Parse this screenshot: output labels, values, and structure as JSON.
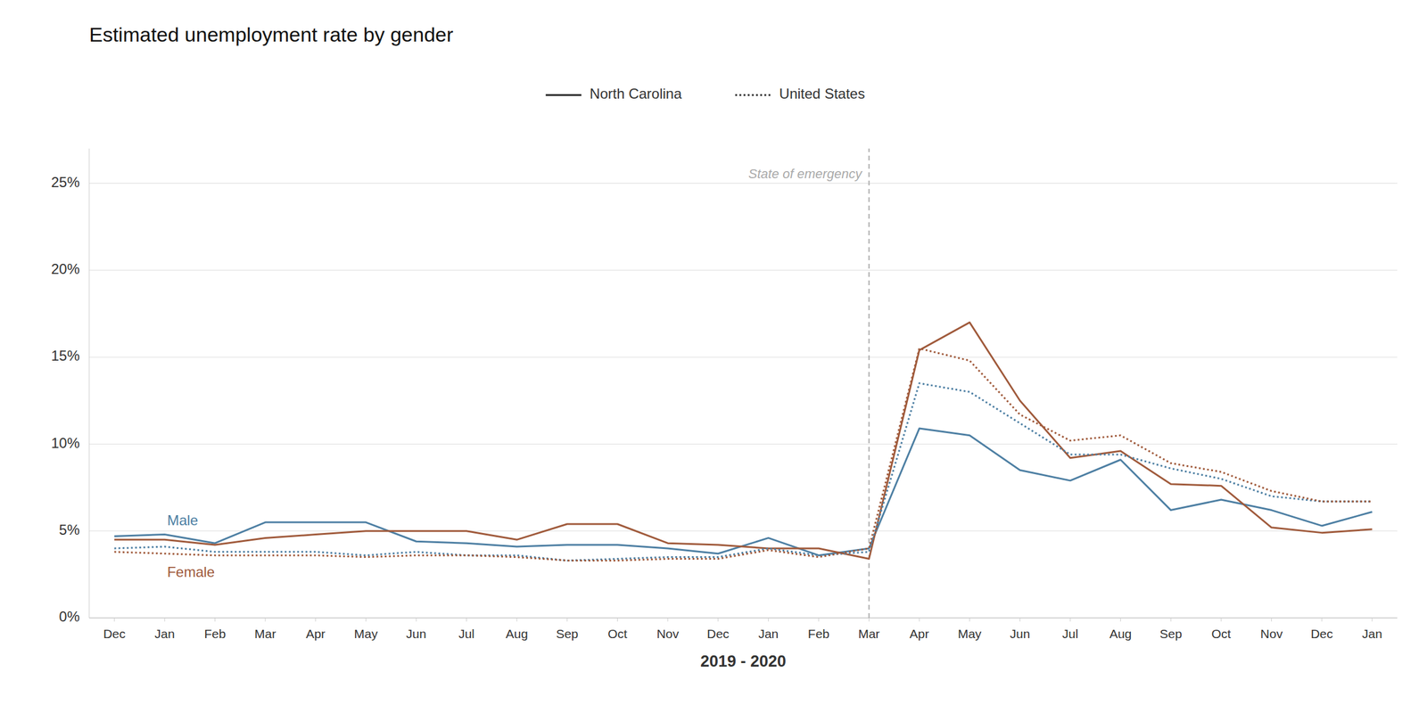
{
  "chart_data": {
    "type": "line",
    "title": "Estimated unemployment rate by gender",
    "x_label": "2019 - 2020",
    "categories": [
      "Dec",
      "Jan",
      "Feb",
      "Mar",
      "Apr",
      "May",
      "Jun",
      "Jul",
      "Aug",
      "Sep",
      "Oct",
      "Nov",
      "Dec",
      "Jan",
      "Feb",
      "Mar",
      "Apr",
      "May",
      "Jun",
      "Jul",
      "Aug",
      "Sep",
      "Oct",
      "Nov",
      "Dec",
      "Jan"
    ],
    "series": [
      {
        "name": "North Carolina",
        "color": "#4d7fa3",
        "line_style": "solid",
        "values": [
          4.7,
          4.8,
          4.3,
          5.5,
          5.5,
          5.5,
          4.4,
          4.3,
          4.1,
          4.2,
          4.2,
          4.0,
          3.7,
          4.6,
          3.6,
          4.0,
          10.9,
          10.5,
          8.5,
          7.9,
          9.1,
          6.2,
          6.8,
          6.2,
          5.3,
          6.1
        ]
      },
      {
        "name": "North Carolina",
        "color": "#a05a3b",
        "line_style": "solid",
        "values": [
          4.5,
          4.5,
          4.2,
          4.6,
          4.8,
          5.0,
          5.0,
          5.0,
          4.5,
          5.4,
          5.4,
          4.3,
          4.2,
          4.0,
          4.0,
          3.4,
          15.4,
          17.0,
          12.5,
          9.2,
          9.6,
          7.7,
          7.6,
          5.2,
          4.9,
          5.1
        ]
      },
      {
        "name": "United States",
        "color": "#4d7fa3",
        "line_style": "dotted",
        "values": [
          4.0,
          4.1,
          3.8,
          3.8,
          3.8,
          3.6,
          3.8,
          3.6,
          3.6,
          3.3,
          3.4,
          3.5,
          3.5,
          4.0,
          3.6,
          3.8,
          13.5,
          13.0,
          11.2,
          9.4,
          9.4,
          8.6,
          8.0,
          7.0,
          6.7,
          6.7
        ]
      },
      {
        "name": "United States",
        "color": "#a05a3b",
        "line_style": "dotted",
        "values": [
          3.8,
          3.7,
          3.6,
          3.6,
          3.6,
          3.5,
          3.6,
          3.6,
          3.5,
          3.3,
          3.3,
          3.4,
          3.4,
          3.9,
          3.5,
          4.0,
          15.5,
          14.8,
          11.7,
          10.2,
          10.5,
          8.9,
          8.4,
          7.3,
          6.7,
          6.7
        ]
      }
    ],
    "annotations": [
      {
        "text": "State of emergency",
        "x": 15,
        "color": "#aaaaaa"
      },
      {
        "text": "Male",
        "color": "#4d7fa3"
      },
      {
        "text": "Female",
        "color": "#a05a3b"
      }
    ],
    "ylim": [
      0,
      27
    ],
    "yticks": [
      {
        "value": 0,
        "label": "0%"
      },
      {
        "value": 5,
        "label": "5%"
      },
      {
        "value": 10,
        "label": "10%"
      },
      {
        "value": 15,
        "label": "15%"
      },
      {
        "value": 20,
        "label": "20%"
      },
      {
        "value": 25,
        "label": "25%"
      }
    ],
    "grid": true,
    "legend": "top"
  }
}
